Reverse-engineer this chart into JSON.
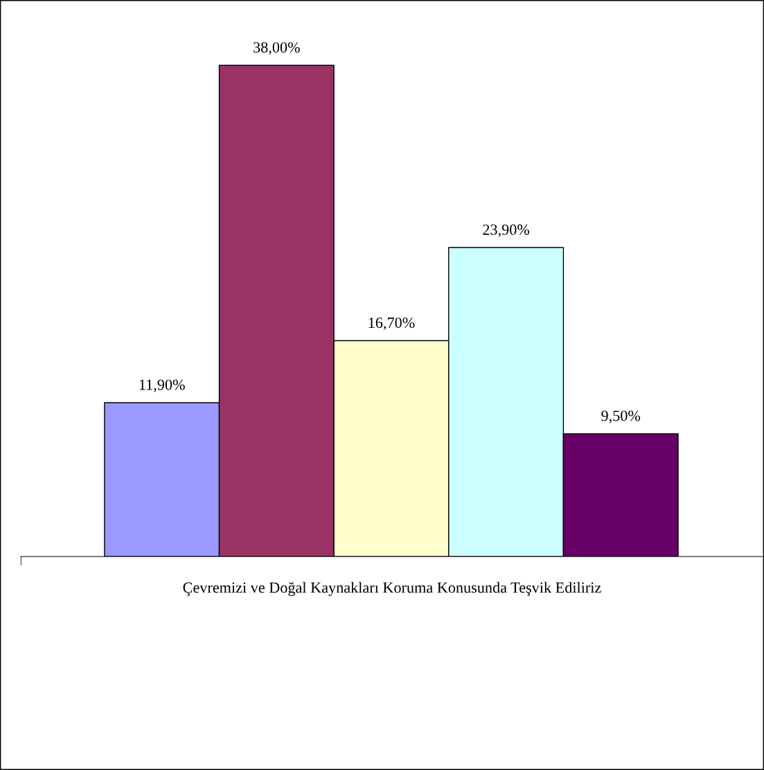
{
  "chart_data": {
    "type": "bar",
    "categories": [
      null,
      null,
      null,
      null,
      null
    ],
    "xlabel": "Çevremizi ve Doğal Kaynakları Koruma Konusunda Teşvik Ediliriz",
    "values": [
      11.9,
      38.0,
      16.7,
      23.9,
      9.5
    ],
    "colors": [
      "#9999ff",
      "#993366",
      "#ffffcc",
      "#ccffff",
      "#660066"
    ],
    "value_labels": [
      "11,90%",
      "38,00%",
      "16,70%",
      "23,90%",
      "9,50%"
    ],
    "grid": false
  }
}
